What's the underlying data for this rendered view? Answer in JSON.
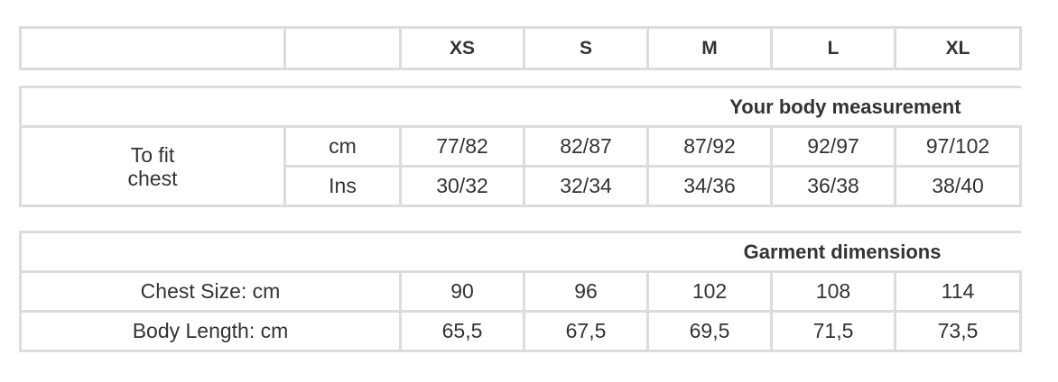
{
  "sizes": [
    "XS",
    "S",
    "M",
    "L",
    "XL"
  ],
  "body_measurement": {
    "title": "Your body measurement",
    "row_label_line1": "To fit",
    "row_label_line2": "chest",
    "units": [
      "cm",
      "Ins"
    ],
    "cm": [
      "77/82",
      "82/87",
      "87/92",
      "92/97",
      "97/102"
    ],
    "ins": [
      "30/32",
      "32/34",
      "34/36",
      "36/38",
      "38/40"
    ]
  },
  "garment_dimensions": {
    "title": "Garment dimensions",
    "rows": [
      {
        "label": "Chest Size: cm",
        "values": [
          "90",
          "96",
          "102",
          "108",
          "114"
        ]
      },
      {
        "label": "Body Length: cm",
        "values": [
          "65,5",
          "67,5",
          "69,5",
          "71,5",
          "73,5"
        ]
      }
    ]
  }
}
